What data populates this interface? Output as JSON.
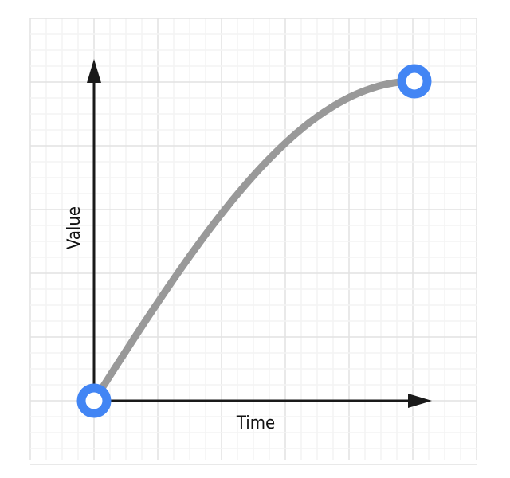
{
  "diagram": {
    "x_axis_label": "Time",
    "y_axis_label": "Value",
    "curve": "ease-out",
    "colors": {
      "curve": "#999999",
      "endpoints": "#4285f4",
      "axes": "#1a1a1a",
      "grid_major": "#e2e2e2",
      "grid_minor": "#f4f4f4"
    }
  }
}
